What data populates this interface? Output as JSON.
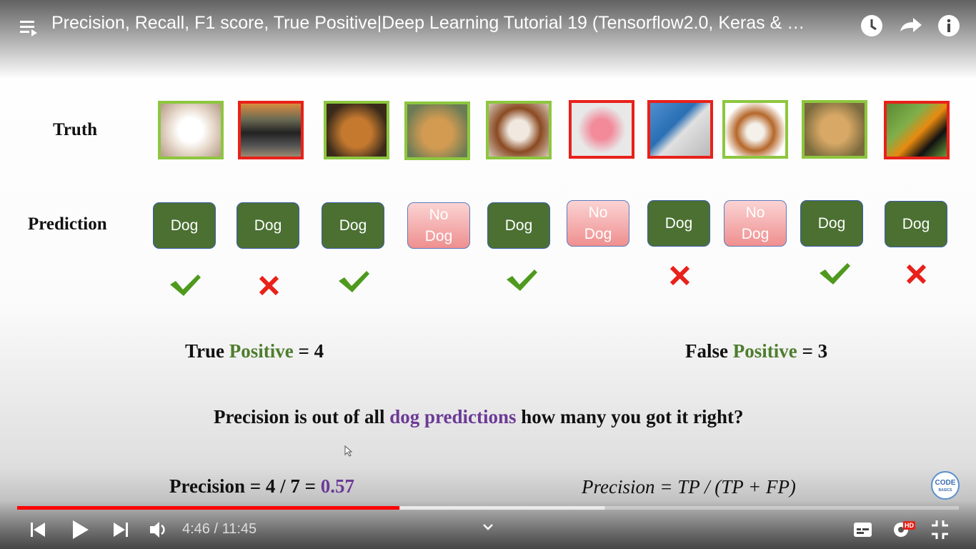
{
  "header": {
    "title": "Precision, Recall, F1 score, True Positive|Deep Learning Tutorial 19 (Tensorflow2.0, Keras & …"
  },
  "slide": {
    "truth_label": "Truth",
    "prediction_label": "Prediction",
    "predictions": [
      "Dog",
      "Dog",
      "Dog",
      "No Dog",
      "Dog",
      "No Dog",
      "Dog",
      "No Dog",
      "Dog",
      "Dog"
    ],
    "true_positive": {
      "word": "True",
      "highlight": "Positive",
      "rest": "= 4"
    },
    "false_positive": {
      "word": "False",
      "highlight": "Positive",
      "rest": "= 3"
    },
    "question": {
      "start": "Precision is out of all",
      "highlight": "dog predictions",
      "end": "how many you got it right?"
    },
    "precision": {
      "text": "Precision = 4 / 7 =",
      "value": "0.57"
    },
    "formula": "Precision = TP / (TP + FP)",
    "logo": {
      "top": "CODE",
      "bottom": "BASICS"
    }
  },
  "player": {
    "time": "4:46 / 11:45",
    "quality": "HD",
    "played": 0.406,
    "buffered": 0.624
  }
}
